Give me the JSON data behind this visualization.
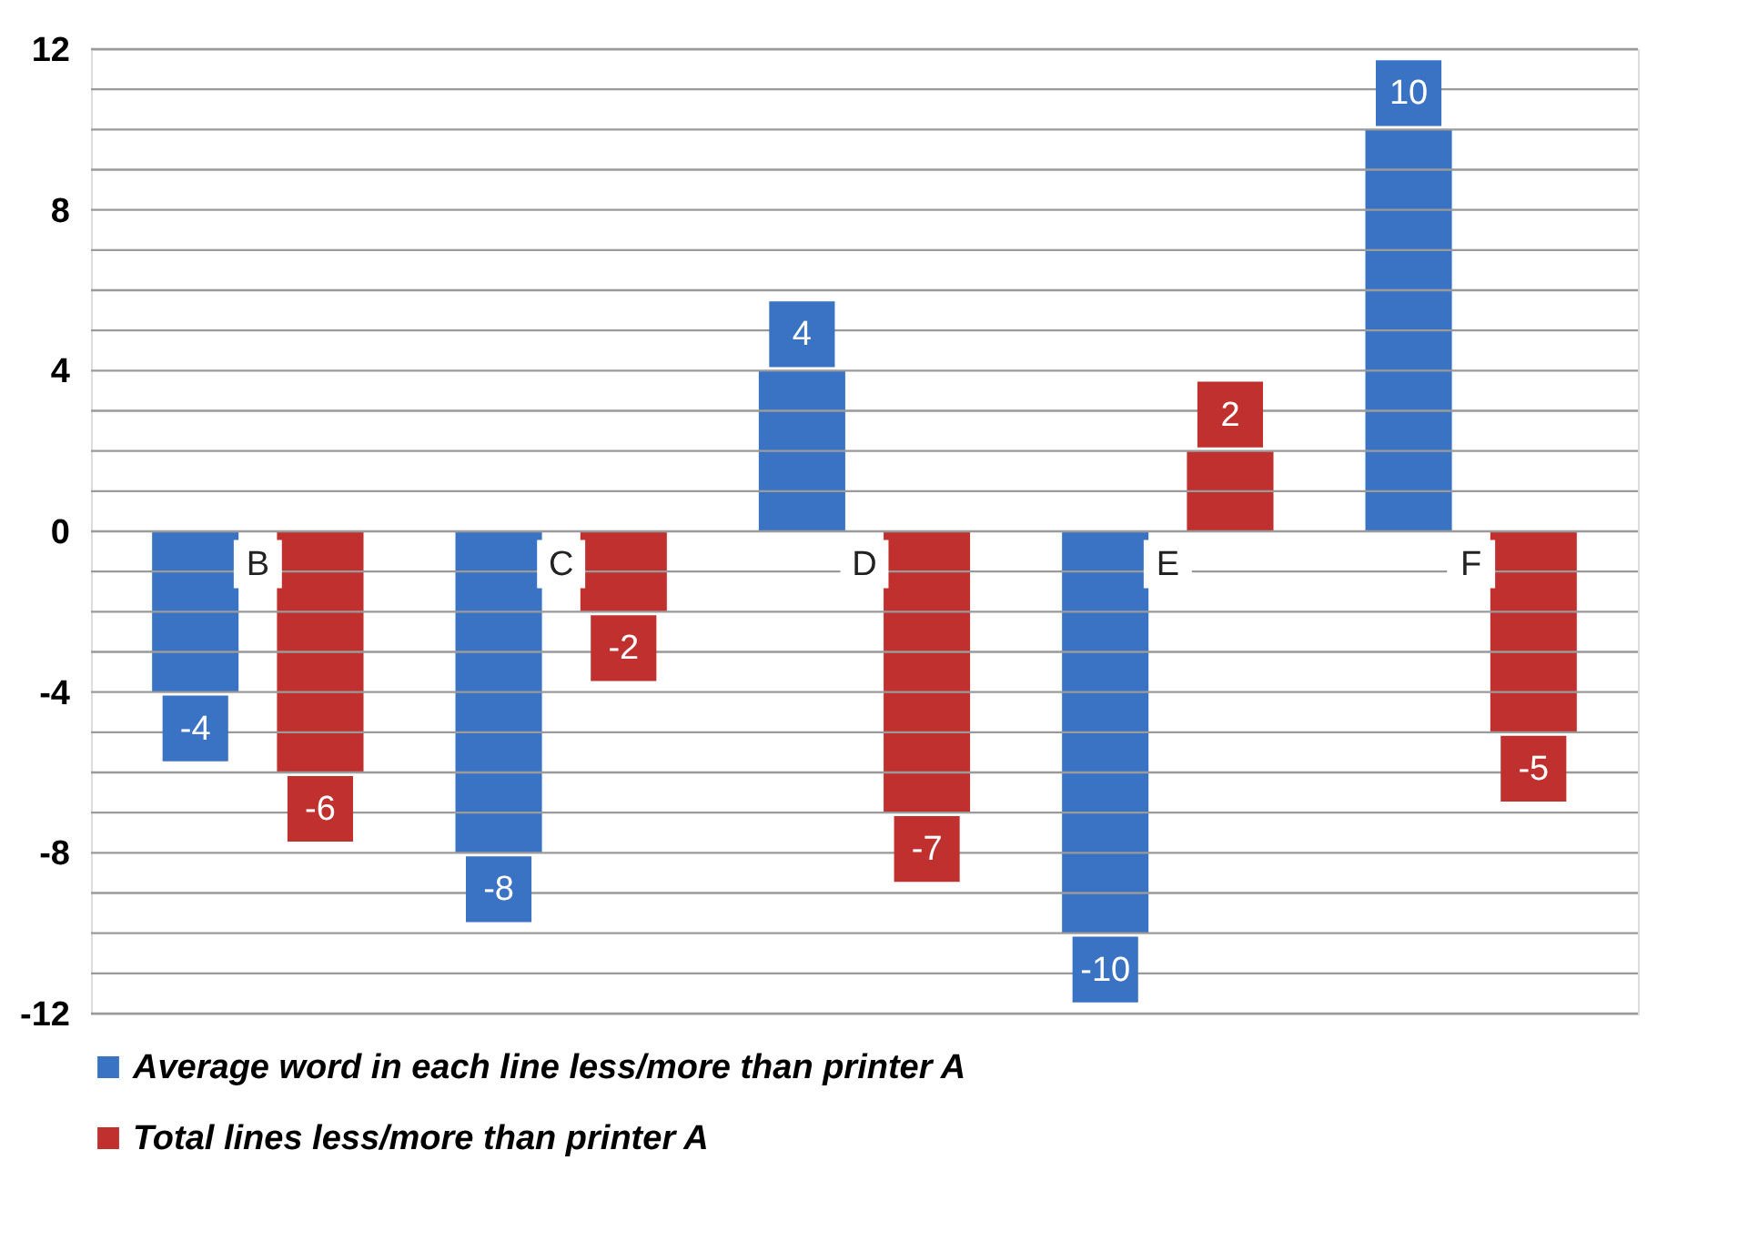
{
  "chart_data": {
    "type": "bar",
    "categories": [
      "B",
      "C",
      "D",
      "E",
      "F"
    ],
    "series": [
      {
        "name": "Average word in each line less/more than printer A",
        "color": "#3b73c4",
        "values": [
          -4,
          -8,
          4,
          -10,
          10
        ]
      },
      {
        "name": "Total lines less/more than printer A",
        "color": "#c0302e",
        "values": [
          -6,
          -2,
          -7,
          2,
          -5
        ]
      }
    ],
    "ylim": [
      -12,
      12
    ],
    "yticks": [
      -12,
      {
        "value": -11,
        "label": null
      },
      {
        "value": -10,
        "label": null
      },
      {
        "value": -9,
        "label": null
      },
      -8,
      {
        "value": -7,
        "label": null
      },
      {
        "value": -6,
        "label": null
      },
      {
        "value": -5,
        "label": null
      },
      -4,
      {
        "value": -3,
        "label": null
      },
      {
        "value": -2,
        "label": null
      },
      {
        "value": -1,
        "label": null
      },
      0,
      {
        "value": 1,
        "label": null
      },
      {
        "value": 2,
        "label": null
      },
      {
        "value": 3,
        "label": null
      },
      4,
      {
        "value": 5,
        "label": null
      },
      {
        "value": 6,
        "label": null
      },
      {
        "value": 7,
        "label": null
      },
      8,
      {
        "value": 9,
        "label": null
      },
      {
        "value": 10,
        "label": null
      },
      {
        "value": 11,
        "label": null
      },
      12
    ],
    "grid": "y",
    "data_labels": true,
    "legend": "bottom left"
  }
}
